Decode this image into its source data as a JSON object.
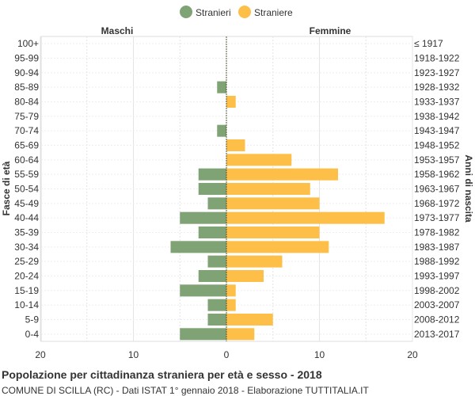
{
  "legend": {
    "stranieri": {
      "label": "Stranieri",
      "color": "#7fa374"
    },
    "straniere": {
      "label": "Straniere",
      "color": "#fdbf48"
    }
  },
  "labels": {
    "left_side": "Maschi",
    "right_side": "Femmine",
    "y_left_title": "Fasce di età",
    "y_right_title": "Anni di nascita"
  },
  "footer": {
    "title": "Popolazione per cittadinanza straniera per età e sesso - 2018",
    "subtitle": "COMUNE DI SCILLA (RC) - Dati ISTAT 1° gennaio 2018 - Elaborazione TUTTITALIA.IT"
  },
  "chart_data": {
    "type": "bar",
    "orientation": "horizontal-population-pyramid",
    "x_ticks": [
      "20",
      "10",
      "0",
      "10",
      "20"
    ],
    "xlim": [
      -20,
      20
    ],
    "grid": true,
    "categories": [
      "100+",
      "95-99",
      "90-94",
      "85-89",
      "80-84",
      "75-79",
      "70-74",
      "65-69",
      "60-64",
      "55-59",
      "50-54",
      "45-49",
      "40-44",
      "35-39",
      "30-34",
      "25-29",
      "20-24",
      "15-19",
      "10-14",
      "5-9",
      "0-4"
    ],
    "birth_years": [
      "≤ 1917",
      "1918-1922",
      "1923-1927",
      "1928-1932",
      "1933-1937",
      "1938-1942",
      "1943-1947",
      "1948-1952",
      "1953-1957",
      "1958-1962",
      "1963-1967",
      "1968-1972",
      "1973-1977",
      "1978-1982",
      "1983-1987",
      "1988-1992",
      "1993-1997",
      "1998-2002",
      "2003-2007",
      "2008-2012",
      "2013-2017"
    ],
    "series": [
      {
        "name": "Stranieri",
        "values": [
          0,
          0,
          0,
          1,
          0,
          0,
          1,
          0,
          0,
          3,
          3,
          2,
          5,
          3,
          6,
          2,
          3,
          5,
          2,
          2,
          5
        ]
      },
      {
        "name": "Straniere",
        "values": [
          0,
          0,
          0,
          0,
          1,
          0,
          0,
          2,
          7,
          12,
          9,
          10,
          17,
          10,
          11,
          6,
          4,
          1,
          1,
          5,
          3
        ]
      }
    ]
  }
}
